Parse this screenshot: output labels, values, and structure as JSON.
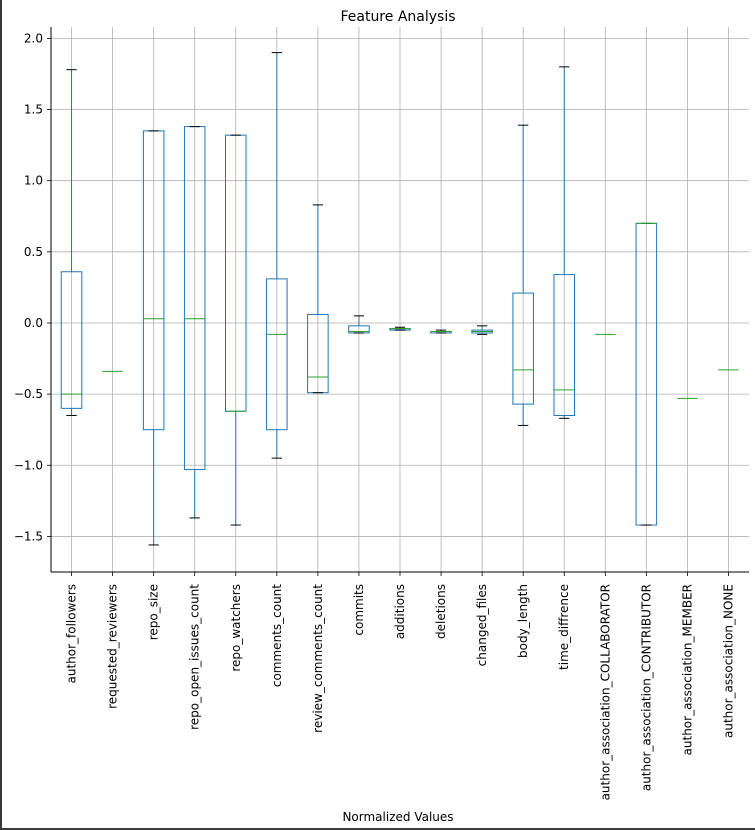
{
  "chart_data": {
    "type": "box",
    "title": "Feature Analysis",
    "xlabel": "Normalized Values",
    "ylabel": "",
    "ylim": [
      -1.75,
      2.08
    ],
    "yticks": [
      2.0,
      1.5,
      1.0,
      0.5,
      0.0,
      -0.5,
      -1.0,
      -1.5
    ],
    "ytick_labels": [
      "2.0",
      "1.5",
      "1.0",
      "0.5",
      "0.0",
      "−0.5",
      "−1.0",
      "−1.5"
    ],
    "grid": true,
    "colors": {
      "box": "#1f77b4",
      "median": "#2ca02c",
      "cap": "#000000",
      "grid": "#b0b0b0"
    },
    "categories": [
      "author_followers",
      "requested_reviewers",
      "repo_size",
      "repo_open_issues_count",
      "repo_watchers",
      "comments_count",
      "review_comments_count",
      "commits",
      "additions",
      "deletions",
      "changed_files",
      "body_length",
      "time_diffrence",
      "author_association_COLLABORATOR",
      "author_association_CONTRIBUTOR",
      "author_association_MEMBER",
      "author_association_NONE"
    ],
    "boxes": [
      {
        "whislo": -0.65,
        "q1": -0.6,
        "med": -0.5,
        "q3": 0.36,
        "whishi": 1.78
      },
      {
        "whislo": -0.34,
        "q1": -0.34,
        "med": -0.34,
        "q3": -0.34,
        "whishi": -0.34
      },
      {
        "whislo": -1.56,
        "q1": -0.75,
        "med": 0.03,
        "q3": 1.35,
        "whishi": 1.35
      },
      {
        "whislo": -1.37,
        "q1": -1.03,
        "med": 0.03,
        "q3": 1.38,
        "whishi": 1.38
      },
      {
        "whislo": -1.42,
        "q1": -0.62,
        "med": -0.62,
        "q3": 1.32,
        "whishi": 1.32
      },
      {
        "whislo": -0.95,
        "q1": -0.75,
        "med": -0.08,
        "q3": 0.31,
        "whishi": 1.9
      },
      {
        "whislo": -0.49,
        "q1": -0.49,
        "med": -0.38,
        "q3": 0.06,
        "whishi": 0.83
      },
      {
        "whislo": -0.07,
        "q1": -0.07,
        "med": -0.06,
        "q3": -0.02,
        "whishi": 0.05
      },
      {
        "whislo": -0.05,
        "q1": -0.05,
        "med": -0.04,
        "q3": -0.04,
        "whishi": -0.03
      },
      {
        "whislo": -0.07,
        "q1": -0.07,
        "med": -0.06,
        "q3": -0.06,
        "whishi": -0.05
      },
      {
        "whislo": -0.08,
        "q1": -0.07,
        "med": -0.06,
        "q3": -0.05,
        "whishi": -0.02
      },
      {
        "whislo": -0.72,
        "q1": -0.57,
        "med": -0.33,
        "q3": 0.21,
        "whishi": 1.39
      },
      {
        "whislo": -0.67,
        "q1": -0.65,
        "med": -0.47,
        "q3": 0.34,
        "whishi": 1.8
      },
      {
        "whislo": -0.08,
        "q1": -0.08,
        "med": -0.08,
        "q3": -0.08,
        "whishi": -0.08
      },
      {
        "whislo": -1.42,
        "q1": -1.42,
        "med": 0.7,
        "q3": 0.7,
        "whishi": 0.7
      },
      {
        "whislo": -0.53,
        "q1": -0.53,
        "med": -0.53,
        "q3": -0.53,
        "whishi": -0.53
      },
      {
        "whislo": -0.33,
        "q1": -0.33,
        "med": -0.33,
        "q3": -0.33,
        "whishi": -0.33
      }
    ]
  }
}
